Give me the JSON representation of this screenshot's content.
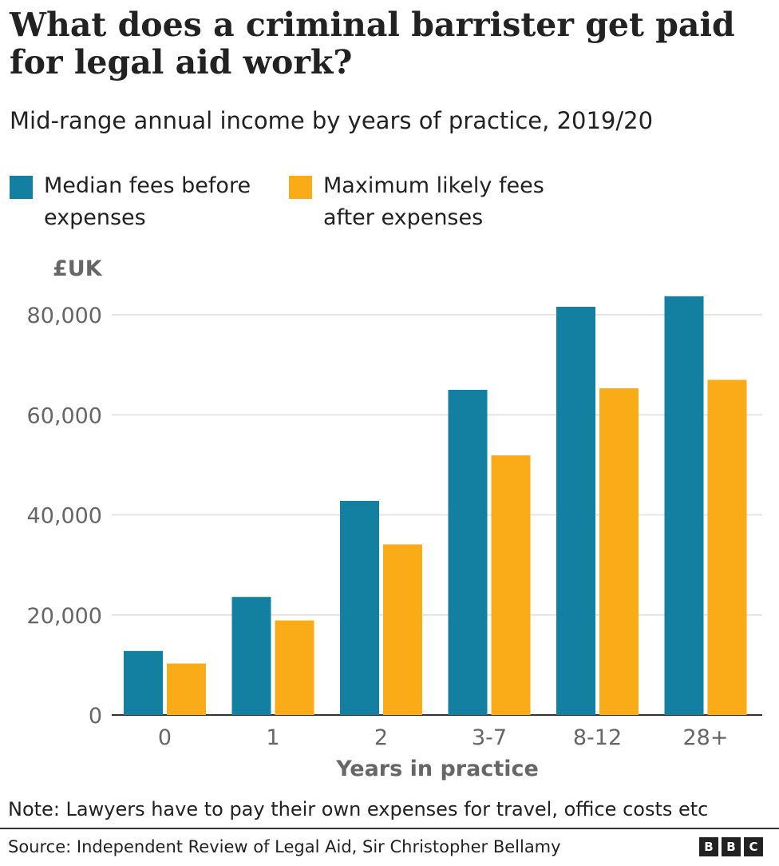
{
  "header": {
    "title": "What does a criminal barrister get paid for legal aid work?",
    "subtitle": "Mid-range annual income by years of practice, 2019/20"
  },
  "legend": {
    "items": [
      {
        "label": "Median fees before expenses",
        "color": "#1380A1"
      },
      {
        "label": "Maximum likely fees after expenses",
        "color": "#FAAB18"
      }
    ]
  },
  "chart_data": {
    "type": "bar",
    "title": "What does a criminal barrister get paid for legal aid work?",
    "subtitle": "Mid-range annual income by years of practice, 2019/20",
    "xlabel": "Years in practice",
    "ylabel": "£UK",
    "categories": [
      "0",
      "1",
      "2",
      "3-7",
      "8-12",
      "28+"
    ],
    "series": [
      {
        "name": "Median fees before expenses",
        "color": "#1380A1",
        "values": [
          12800,
          23600,
          42800,
          65000,
          81600,
          83700
        ]
      },
      {
        "name": "Maximum likely fees after expenses",
        "color": "#FAAB18",
        "values": [
          10300,
          18900,
          34100,
          51900,
          65300,
          67000
        ]
      }
    ],
    "yticks": [
      0,
      20000,
      40000,
      60000,
      80000
    ],
    "ytick_labels": [
      "0",
      "20,000",
      "40,000",
      "60,000",
      "80,000"
    ],
    "ylim": [
      0,
      80000
    ],
    "grid": true,
    "legend_position": "top-left"
  },
  "footer": {
    "note": "Note: Lawyers have to pay their own expenses for travel, office costs etc",
    "source": "Source: Independent Review of Legal Aid, Sir Christopher Bellamy",
    "logo_letters": [
      "B",
      "B",
      "C"
    ]
  }
}
